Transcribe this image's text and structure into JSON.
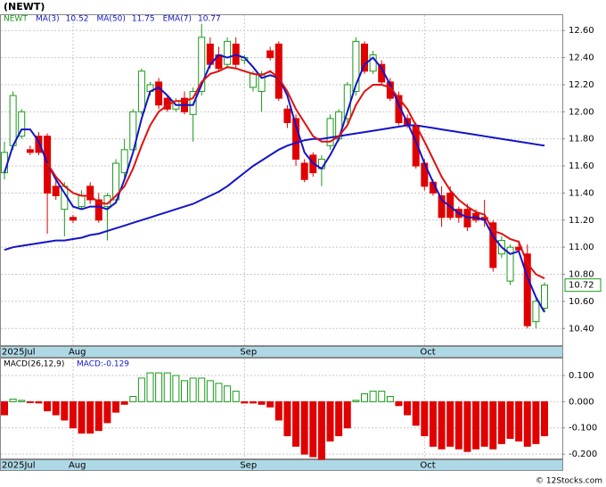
{
  "chart_data": [
    {
      "type": "candlestick",
      "title": "(NEWT)",
      "symbol": "NEWT",
      "categories": [
        "2025Jul",
        null,
        null,
        null,
        null,
        null,
        null,
        null,
        "Aug",
        null,
        null,
        null,
        null,
        null,
        null,
        null,
        null,
        null,
        null,
        null,
        null,
        null,
        null,
        null,
        null,
        null,
        null,
        null,
        "Sep",
        null,
        null,
        null,
        null,
        null,
        null,
        null,
        null,
        null,
        null,
        null,
        null,
        null,
        null,
        null,
        null,
        null,
        null,
        null,
        null,
        "Oct",
        null,
        null,
        null,
        null,
        null,
        null,
        null,
        null,
        null,
        null,
        null,
        null,
        null,
        null
      ],
      "open": [
        11.55,
        11.75,
        11.82,
        11.72,
        11.82,
        11.82,
        11.45,
        11.28,
        11.22,
        11.3,
        11.45,
        11.35,
        11.3,
        11.35,
        11.55,
        11.72,
        12.0,
        12.15,
        12.22,
        12.1,
        12.02,
        12.1,
        11.98,
        12.15,
        12.5,
        12.42,
        12.35,
        12.5,
        12.38,
        12.18,
        12.15,
        12.45,
        12.5,
        12.02,
        11.95,
        11.62,
        11.68,
        11.58,
        11.75,
        11.8,
        11.95,
        12.15,
        12.5,
        12.3,
        12.35,
        12.22,
        12.12,
        11.95,
        11.9,
        11.62,
        11.48,
        11.38,
        11.4,
        11.28,
        11.28,
        11.25,
        11.22,
        11.18,
        10.95,
        10.75,
        11.0,
        10.95,
        10.45,
        10.55
      ],
      "high": [
        11.78,
        12.15,
        12.02,
        11.75,
        11.85,
        11.84,
        11.5,
        11.48,
        11.24,
        11.42,
        11.48,
        11.4,
        11.4,
        11.65,
        11.8,
        12.02,
        12.32,
        12.22,
        12.25,
        12.12,
        12.1,
        12.15,
        12.18,
        12.65,
        12.55,
        12.48,
        12.55,
        12.55,
        12.42,
        12.3,
        12.3,
        12.48,
        12.52,
        12.05,
        11.98,
        11.65,
        11.7,
        11.68,
        11.98,
        12.02,
        12.22,
        12.55,
        12.52,
        12.45,
        12.38,
        12.25,
        12.15,
        11.98,
        11.92,
        11.65,
        11.5,
        11.45,
        11.45,
        11.3,
        11.32,
        11.28,
        11.35,
        11.2,
        11.08,
        11.02,
        11.05,
        11.02,
        10.62,
        10.74
      ],
      "low": [
        11.5,
        11.72,
        11.8,
        11.68,
        11.68,
        11.1,
        11.35,
        11.08,
        11.18,
        11.28,
        11.32,
        11.18,
        11.05,
        11.32,
        11.5,
        11.7,
        11.98,
        12.12,
        12.02,
        12.0,
        12.0,
        11.98,
        11.78,
        12.12,
        12.32,
        12.3,
        12.32,
        12.32,
        12.35,
        12.15,
        12.0,
        12.38,
        12.08,
        11.88,
        11.6,
        11.48,
        11.52,
        11.45,
        11.72,
        11.78,
        11.92,
        12.12,
        12.28,
        12.28,
        12.2,
        12.08,
        11.9,
        11.88,
        11.58,
        11.42,
        11.38,
        11.15,
        11.2,
        11.18,
        11.12,
        11.18,
        11.15,
        10.82,
        10.92,
        10.72,
        10.96,
        10.4,
        10.4,
        10.52
      ],
      "close": [
        11.7,
        12.12,
        12.0,
        11.7,
        11.7,
        11.4,
        11.38,
        11.45,
        11.2,
        11.38,
        11.35,
        11.2,
        11.38,
        11.62,
        11.72,
        12.0,
        12.3,
        12.2,
        12.05,
        12.02,
        12.08,
        12.0,
        12.15,
        12.55,
        12.35,
        12.32,
        12.52,
        12.35,
        12.4,
        12.28,
        12.28,
        12.4,
        12.1,
        11.92,
        11.65,
        11.5,
        11.55,
        11.65,
        11.95,
        12.0,
        12.2,
        12.52,
        12.3,
        12.42,
        12.22,
        12.1,
        11.92,
        11.9,
        11.6,
        11.45,
        11.4,
        11.22,
        11.22,
        11.22,
        11.15,
        11.2,
        11.2,
        10.85,
        11.05,
        11.0,
        10.98,
        10.42,
        10.6,
        10.72
      ],
      "up_color": "#1a9a1a",
      "down_color": "#e00000",
      "series": [
        {
          "name": "MA(3)",
          "color": "#1414c8",
          "last_value": 10.52,
          "values": [
            11.55,
            11.75,
            11.87,
            11.87,
            11.78,
            11.62,
            11.5,
            11.4,
            11.3,
            11.28,
            11.3,
            11.3,
            11.28,
            11.33,
            11.5,
            11.7,
            11.95,
            12.15,
            12.18,
            12.12,
            12.05,
            12.05,
            12.05,
            12.2,
            12.35,
            12.42,
            12.4,
            12.42,
            12.4,
            12.33,
            12.25,
            12.27,
            12.25,
            12.12,
            11.9,
            11.7,
            11.62,
            11.58,
            11.68,
            11.8,
            12.0,
            12.2,
            12.35,
            12.4,
            12.32,
            12.2,
            12.05,
            11.92,
            11.78,
            11.62,
            11.48,
            11.35,
            11.3,
            11.25,
            11.22,
            11.22,
            11.2,
            11.08,
            11.0,
            10.95,
            10.97,
            10.78,
            10.63,
            10.52
          ]
        },
        {
          "name": "MA(50)",
          "color": "#1414c8",
          "last_value": 11.75,
          "values": [
            10.98,
            11.0,
            11.01,
            11.02,
            11.03,
            11.04,
            11.05,
            11.05,
            11.06,
            11.07,
            11.09,
            11.1,
            11.12,
            11.14,
            11.16,
            11.18,
            11.2,
            11.22,
            11.24,
            11.26,
            11.28,
            11.3,
            11.32,
            11.35,
            11.38,
            11.41,
            11.45,
            11.5,
            11.55,
            11.6,
            11.64,
            11.68,
            11.72,
            11.75,
            11.77,
            11.79,
            11.8,
            11.8,
            11.81,
            11.82,
            11.83,
            11.84,
            11.85,
            11.86,
            11.87,
            11.88,
            11.89,
            11.9,
            11.9,
            11.89,
            11.88,
            11.87,
            11.86,
            11.85,
            11.84,
            11.83,
            11.82,
            11.81,
            11.8,
            11.79,
            11.78,
            11.77,
            11.76,
            11.75
          ]
        },
        {
          "name": "EMA(7)",
          "color": "#e01010",
          "last_value": 10.77,
          "values": [
            null,
            null,
            null,
            null,
            null,
            11.62,
            11.52,
            11.45,
            11.4,
            11.38,
            11.38,
            11.33,
            11.32,
            11.38,
            11.45,
            11.58,
            11.75,
            11.9,
            12.0,
            12.05,
            12.08,
            12.08,
            12.1,
            12.22,
            12.28,
            12.3,
            12.33,
            12.32,
            12.3,
            12.28,
            12.27,
            12.3,
            12.25,
            12.15,
            12.02,
            11.92,
            11.82,
            11.78,
            11.78,
            11.82,
            11.9,
            12.05,
            12.15,
            12.2,
            12.2,
            12.18,
            12.1,
            12.02,
            11.9,
            11.78,
            11.65,
            11.52,
            11.42,
            11.35,
            11.3,
            11.26,
            11.24,
            11.12,
            11.1,
            11.06,
            11.04,
            10.88,
            10.8,
            10.77
          ]
        }
      ],
      "last_price": 10.72,
      "ylim": [
        10.27,
        12.72
      ],
      "yticks": [
        {
          "value": 10.4,
          "label": "10.40"
        },
        {
          "value": 10.6,
          "label": "10.60"
        },
        {
          "value": 10.8,
          "label": "10.80"
        },
        {
          "value": 11.0,
          "label": "11.00"
        },
        {
          "value": 11.2,
          "label": "11.20"
        },
        {
          "value": 11.4,
          "label": "11.40"
        },
        {
          "value": 11.6,
          "label": "11.60"
        },
        {
          "value": 11.8,
          "label": "11.80"
        },
        {
          "value": 12.0,
          "label": "12.00"
        },
        {
          "value": 12.2,
          "label": "12.20"
        },
        {
          "value": 12.4,
          "label": "12.40"
        },
        {
          "value": 12.6,
          "label": "12.60"
        }
      ],
      "grid": true
    },
    {
      "type": "bar",
      "title": "MACD(26,12,9)",
      "subtitle": "MACD:-0.129",
      "categories": [
        "2025Jul",
        null,
        null,
        null,
        null,
        null,
        null,
        null,
        "Aug",
        null,
        null,
        null,
        null,
        null,
        null,
        null,
        null,
        null,
        null,
        null,
        null,
        null,
        null,
        null,
        null,
        null,
        null,
        null,
        "Sep",
        null,
        null,
        null,
        null,
        null,
        null,
        null,
        null,
        null,
        null,
        null,
        null,
        null,
        null,
        null,
        null,
        null,
        null,
        null,
        null,
        "Oct",
        null,
        null,
        null,
        null,
        null,
        null,
        null,
        null,
        null,
        null,
        null,
        null,
        null,
        null
      ],
      "values": [
        -0.05,
        0.01,
        0.005,
        -0.003,
        -0.005,
        -0.035,
        -0.05,
        -0.07,
        -0.1,
        -0.12,
        -0.12,
        -0.11,
        -0.08,
        -0.04,
        -0.01,
        0.02,
        0.09,
        0.11,
        0.11,
        0.11,
        0.1,
        0.08,
        0.09,
        0.09,
        0.08,
        0.07,
        0.06,
        0.04,
        -0.005,
        -0.005,
        -0.01,
        -0.02,
        -0.07,
        -0.13,
        -0.17,
        -0.2,
        -0.21,
        -0.22,
        -0.15,
        -0.13,
        -0.1,
        0.005,
        0.03,
        0.04,
        0.04,
        0.02,
        -0.015,
        -0.05,
        -0.09,
        -0.13,
        -0.17,
        -0.18,
        -0.17,
        -0.18,
        -0.19,
        -0.18,
        -0.17,
        -0.18,
        -0.16,
        -0.14,
        -0.15,
        -0.17,
        -0.16,
        -0.13
      ],
      "up_color": "#1a9a1a",
      "down_color": "#e00000",
      "ylim": [
        -0.22,
        0.168
      ],
      "yticks": [
        {
          "value": -0.2,
          "label": "-0.200"
        },
        {
          "value": -0.1,
          "label": "-0.100"
        },
        {
          "value": 0,
          "label": "0.000"
        },
        {
          "value": 0.1,
          "label": "0.100"
        }
      ],
      "grid": true
    }
  ],
  "footer": "© 12Stocks.com"
}
